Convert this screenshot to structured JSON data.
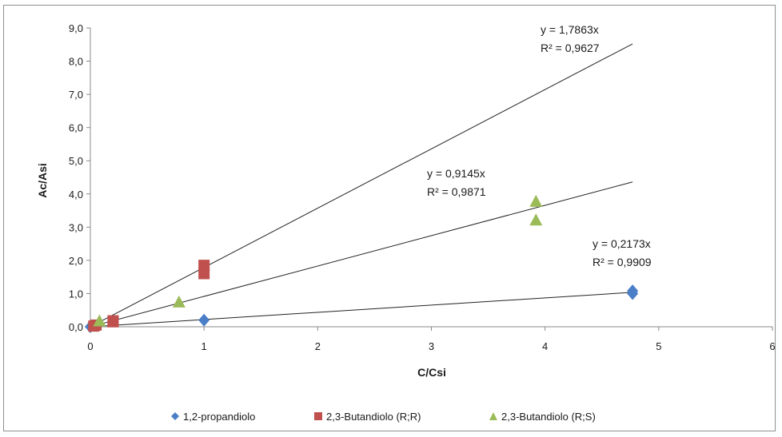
{
  "chart_data": {
    "type": "scatter",
    "title": "",
    "xlabel": "C/Csi",
    "ylabel": "Ac/Asi",
    "xlim": [
      0,
      6
    ],
    "ylim": [
      0,
      9
    ],
    "x_ticks": [
      "0",
      "1",
      "2",
      "3",
      "4",
      "5",
      "6"
    ],
    "y_ticks": [
      "0,0",
      "1,0",
      "2,0",
      "3,0",
      "4,0",
      "5,0",
      "6,0",
      "7,0",
      "8,0",
      "9,0"
    ],
    "grid": false,
    "legend_position": "bottom",
    "series": [
      {
        "name": "1,2-propandiolo",
        "marker": "diamond",
        "color": "#4a7ec7",
        "points": [
          [
            0,
            0
          ],
          [
            1,
            0.2
          ],
          [
            4.77,
            1.0
          ],
          [
            4.77,
            1.08
          ]
        ],
        "trendline": {
          "slope": 0.2173,
          "x_end": 4.77,
          "equation": "y = 0,2173x",
          "r2": "R² = 0,9909"
        }
      },
      {
        "name": "2,3-Butandiolo (R;R)",
        "marker": "square",
        "color": "#c0504d",
        "points": [
          [
            0.03,
            0.02
          ],
          [
            0.05,
            0.05
          ],
          [
            0.2,
            0.15
          ],
          [
            0.2,
            0.18
          ],
          [
            1,
            1.6
          ],
          [
            1,
            1.85
          ]
        ],
        "trendline": {
          "slope": 1.7863,
          "x_end": 4.77,
          "equation": "y = 1,7863x",
          "r2": "R² = 0,9627"
        }
      },
      {
        "name": "2,3-Butandiolo (R;S)",
        "marker": "triangle",
        "color": "#9bbb59",
        "points": [
          [
            0.08,
            0.18
          ],
          [
            0.78,
            0.75
          ],
          [
            3.92,
            3.22
          ],
          [
            3.92,
            3.78
          ]
        ],
        "trendline": {
          "slope": 0.9145,
          "x_end": 4.77,
          "equation": "y = 0,9145x",
          "r2": "R² = 0,9871"
        }
      }
    ]
  }
}
